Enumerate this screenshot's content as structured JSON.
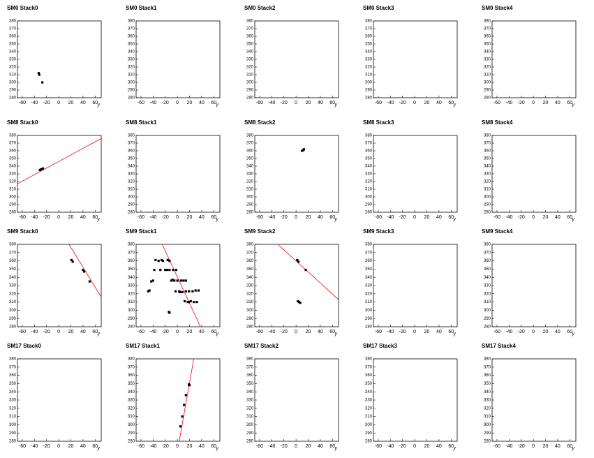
{
  "chart_data": [
    {
      "type": "scatter",
      "title": "SM0 Stack0",
      "xlabel": "y",
      "xlim": [
        -68,
        70
      ],
      "ylim": [
        280,
        380
      ],
      "xticks": [
        -60,
        -40,
        -20,
        0,
        20,
        40,
        60
      ],
      "yticks": [
        280,
        290,
        300,
        310,
        320,
        330,
        340,
        350,
        360,
        370,
        380
      ],
      "series": [
        {
          "color": "#000000",
          "x": [
            -33,
            -32,
            -27
          ],
          "values": [
            312,
            310,
            300
          ]
        }
      ],
      "lines": []
    },
    {
      "type": "scatter",
      "title": "SM0 Stack1",
      "xlabel": "y",
      "xlim": [
        -68,
        70
      ],
      "ylim": [
        280,
        380
      ],
      "xticks": [
        -60,
        -40,
        -20,
        0,
        20,
        40,
        60
      ],
      "yticks": [
        280,
        290,
        300,
        310,
        320,
        330,
        340,
        350,
        360,
        370,
        380
      ],
      "series": [],
      "lines": []
    },
    {
      "type": "scatter",
      "title": "SM0 Stack2",
      "xlabel": "y",
      "xlim": [
        -68,
        70
      ],
      "ylim": [
        280,
        380
      ],
      "xticks": [
        -60,
        -40,
        -20,
        0,
        20,
        40,
        60
      ],
      "yticks": [
        280,
        290,
        300,
        310,
        320,
        330,
        340,
        350,
        360,
        370,
        380
      ],
      "series": [],
      "lines": []
    },
    {
      "type": "scatter",
      "title": "SM0 Stack3",
      "xlabel": "y",
      "xlim": [
        -68,
        70
      ],
      "ylim": [
        280,
        380
      ],
      "xticks": [
        -60,
        -40,
        -20,
        0,
        20,
        40,
        60
      ],
      "yticks": [
        280,
        290,
        300,
        310,
        320,
        330,
        340,
        350,
        360,
        370,
        380
      ],
      "series": [],
      "lines": []
    },
    {
      "type": "scatter",
      "title": "SM0 Stack4",
      "xlabel": "y",
      "xlim": [
        -68,
        70
      ],
      "ylim": [
        280,
        380
      ],
      "xticks": [
        -60,
        -40,
        -20,
        0,
        20,
        40,
        60
      ],
      "yticks": [
        280,
        290,
        300,
        310,
        320,
        330,
        340,
        350,
        360,
        370,
        380
      ],
      "series": [],
      "lines": []
    },
    {
      "type": "scatter",
      "title": "SM8 Stack0",
      "xlabel": "y",
      "xlim": [
        -68,
        70
      ],
      "ylim": [
        280,
        380
      ],
      "xticks": [
        -60,
        -40,
        -20,
        0,
        20,
        40,
        60
      ],
      "yticks": [
        280,
        290,
        300,
        310,
        320,
        330,
        340,
        350,
        360,
        370,
        380
      ],
      "series": [
        {
          "color": "#000000",
          "x": [
            -31,
            -29,
            -26
          ],
          "values": [
            335,
            336,
            337
          ]
        }
      ],
      "lines": [
        {
          "color": "#ff0000",
          "x": [
            -68,
            70
          ],
          "values": [
            317,
            376
          ]
        }
      ]
    },
    {
      "type": "scatter",
      "title": "SM8 Stack1",
      "xlabel": "y",
      "xlim": [
        -68,
        70
      ],
      "ylim": [
        280,
        380
      ],
      "xticks": [
        -60,
        -40,
        -20,
        0,
        20,
        40,
        60
      ],
      "yticks": [
        280,
        290,
        300,
        310,
        320,
        330,
        340,
        350,
        360,
        370,
        380
      ],
      "series": [],
      "lines": []
    },
    {
      "type": "scatter",
      "title": "SM8 Stack2",
      "xlabel": "y",
      "xlim": [
        -68,
        70
      ],
      "ylim": [
        280,
        380
      ],
      "xticks": [
        -60,
        -40,
        -20,
        0,
        20,
        40,
        60
      ],
      "yticks": [
        280,
        290,
        300,
        310,
        320,
        330,
        340,
        350,
        360,
        370,
        380
      ],
      "series": [
        {
          "color": "#000000",
          "x": [
            10,
            12,
            13
          ],
          "values": [
            360,
            361,
            362
          ]
        }
      ],
      "lines": []
    },
    {
      "type": "scatter",
      "title": "SM8 Stack3",
      "xlabel": "y",
      "xlim": [
        -68,
        70
      ],
      "ylim": [
        280,
        380
      ],
      "xticks": [
        -60,
        -40,
        -20,
        0,
        20,
        40,
        60
      ],
      "yticks": [
        280,
        290,
        300,
        310,
        320,
        330,
        340,
        350,
        360,
        370,
        380
      ],
      "series": [],
      "lines": []
    },
    {
      "type": "scatter",
      "title": "SM8 Stack4",
      "xlabel": "y",
      "xlim": [
        -68,
        70
      ],
      "ylim": [
        280,
        380
      ],
      "xticks": [
        -60,
        -40,
        -20,
        0,
        20,
        40,
        60
      ],
      "yticks": [
        280,
        290,
        300,
        310,
        320,
        330,
        340,
        350,
        360,
        370,
        380
      ],
      "series": [],
      "lines": []
    },
    {
      "type": "scatter",
      "title": "SM9 Stack0",
      "xlabel": "y",
      "xlim": [
        -68,
        70
      ],
      "ylim": [
        280,
        380
      ],
      "xticks": [
        -60,
        -40,
        -20,
        0,
        20,
        40,
        60
      ],
      "yticks": [
        280,
        290,
        300,
        310,
        320,
        330,
        340,
        350,
        360,
        370,
        380
      ],
      "series": [
        {
          "color": "#000000",
          "x": [
            21,
            23,
            40,
            42,
            51
          ],
          "values": [
            361,
            359,
            349,
            347,
            335
          ]
        }
      ],
      "lines": [
        {
          "color": "#ff0000",
          "x": [
            17,
            70
          ],
          "values": [
            380,
            316
          ]
        }
      ]
    },
    {
      "type": "scatter",
      "title": "SM9 Stack1",
      "xlabel": "y",
      "xlim": [
        -68,
        70
      ],
      "ylim": [
        280,
        380
      ],
      "xticks": [
        -60,
        -40,
        -20,
        0,
        20,
        40,
        60
      ],
      "yticks": [
        280,
        290,
        300,
        310,
        320,
        330,
        340,
        350,
        360,
        370,
        380
      ],
      "series": [
        {
          "color": "#000000",
          "x": [
            -36,
            -31,
            -26,
            -24,
            -16,
            -13,
            -38,
            -28,
            -20,
            -17,
            -13,
            -7,
            -2,
            -40,
            -43,
            -10,
            -8,
            -5,
            0,
            6,
            10,
            14,
            -48,
            -46,
            -3,
            3,
            4,
            8,
            14,
            19,
            25,
            30,
            35,
            12,
            17,
            19,
            22,
            27,
            32,
            -14,
            -13
          ],
          "values": [
            361,
            360,
            361,
            360,
            361,
            360,
            349,
            349,
            349,
            349,
            349,
            349,
            349,
            336,
            335,
            336,
            337,
            336,
            336,
            336,
            336,
            336,
            323,
            324,
            323,
            323,
            322,
            322,
            323,
            323,
            323,
            324,
            324,
            311,
            310,
            310,
            311,
            310,
            310,
            298,
            297
          ]
        }
      ],
      "lines": [
        {
          "color": "#ff0000",
          "x": [
            -25,
            38
          ],
          "values": [
            380,
            280
          ]
        }
      ]
    },
    {
      "type": "scatter",
      "title": "SM9 Stack2",
      "xlabel": "y",
      "xlim": [
        -68,
        70
      ],
      "ylim": [
        280,
        380
      ],
      "xticks": [
        -60,
        -40,
        -20,
        0,
        20,
        40,
        60
      ],
      "yticks": [
        280,
        290,
        300,
        310,
        320,
        330,
        340,
        350,
        360,
        370,
        380
      ],
      "series": [
        {
          "color": "#000000",
          "x": [
            2,
            4,
            16,
            3,
            5,
            7
          ],
          "values": [
            361,
            359,
            349,
            311,
            310,
            309
          ]
        }
      ],
      "lines": [
        {
          "color": "#ff0000",
          "x": [
            -30,
            70
          ],
          "values": [
            380,
            313
          ]
        }
      ]
    },
    {
      "type": "scatter",
      "title": "SM9 Stack3",
      "xlabel": "y",
      "xlim": [
        -68,
        70
      ],
      "ylim": [
        280,
        380
      ],
      "xticks": [
        -60,
        -40,
        -20,
        0,
        20,
        40,
        60
      ],
      "yticks": [
        280,
        290,
        300,
        310,
        320,
        330,
        340,
        350,
        360,
        370,
        380
      ],
      "series": [],
      "lines": []
    },
    {
      "type": "scatter",
      "title": "SM9 Stack4",
      "xlabel": "y",
      "xlim": [
        -68,
        70
      ],
      "ylim": [
        280,
        380
      ],
      "xticks": [
        -60,
        -40,
        -20,
        0,
        20,
        40,
        60
      ],
      "yticks": [
        280,
        290,
        300,
        310,
        320,
        330,
        340,
        350,
        360,
        370,
        380
      ],
      "series": [],
      "lines": []
    },
    {
      "type": "scatter",
      "title": "SM17 Stack0",
      "xlabel": "y",
      "xlim": [
        -68,
        70
      ],
      "ylim": [
        280,
        380
      ],
      "xticks": [
        -60,
        -40,
        -20,
        0,
        20,
        40,
        60
      ],
      "yticks": [
        280,
        290,
        300,
        310,
        320,
        330,
        340,
        350,
        360,
        370,
        380
      ],
      "series": [],
      "lines": []
    },
    {
      "type": "scatter",
      "title": "SM17 Stack1",
      "xlabel": "y",
      "xlim": [
        -68,
        70
      ],
      "ylim": [
        280,
        380
      ],
      "xticks": [
        -60,
        -40,
        -20,
        0,
        20,
        40,
        60
      ],
      "yticks": [
        280,
        290,
        300,
        310,
        320,
        330,
        340,
        350,
        360,
        370,
        380
      ],
      "series": [
        {
          "color": "#000000",
          "x": [
            5,
            8,
            11,
            14,
            19,
            20
          ],
          "values": [
            298,
            310,
            324,
            336,
            349,
            348
          ]
        }
      ],
      "lines": [
        {
          "color": "#ff0000",
          "x": [
            3,
            27
          ],
          "values": [
            280,
            380
          ]
        }
      ]
    },
    {
      "type": "scatter",
      "title": "SM17 Stack2",
      "xlabel": "y",
      "xlim": [
        -68,
        70
      ],
      "ylim": [
        280,
        380
      ],
      "xticks": [
        -60,
        -40,
        -20,
        0,
        20,
        40,
        60
      ],
      "yticks": [
        280,
        290,
        300,
        310,
        320,
        330,
        340,
        350,
        360,
        370,
        380
      ],
      "series": [],
      "lines": []
    },
    {
      "type": "scatter",
      "title": "SM17 Stack3",
      "xlabel": "y",
      "xlim": [
        -68,
        70
      ],
      "ylim": [
        280,
        380
      ],
      "xticks": [
        -60,
        -40,
        -20,
        0,
        20,
        40,
        60
      ],
      "yticks": [
        280,
        290,
        300,
        310,
        320,
        330,
        340,
        350,
        360,
        370,
        380
      ],
      "series": [],
      "lines": []
    },
    {
      "type": "scatter",
      "title": "SM17 Stack4",
      "xlabel": "y",
      "xlim": [
        -68,
        70
      ],
      "ylim": [
        280,
        380
      ],
      "xticks": [
        -60,
        -40,
        -20,
        0,
        20,
        40,
        60
      ],
      "yticks": [
        280,
        290,
        300,
        310,
        320,
        330,
        340,
        350,
        360,
        370,
        380
      ],
      "series": [],
      "lines": []
    }
  ]
}
